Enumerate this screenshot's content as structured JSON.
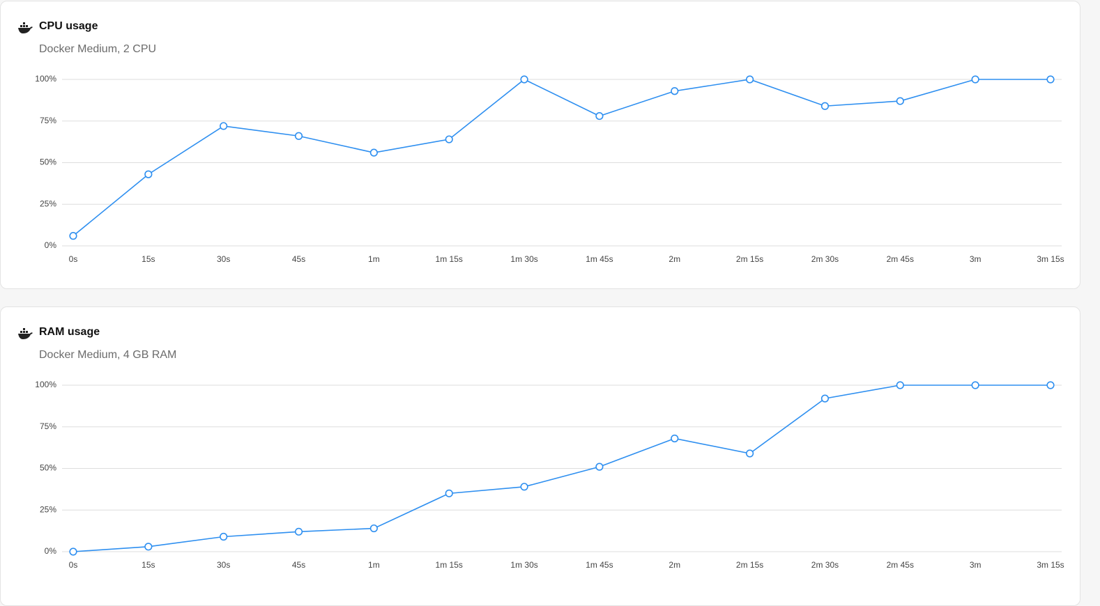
{
  "chart_data": [
    {
      "type": "line",
      "title": "CPU usage",
      "subtitle": "Docker Medium, 2 CPU",
      "color": "#2e8ff0",
      "categories": [
        "0s",
        "15s",
        "30s",
        "45s",
        "1m",
        "1m 15s",
        "1m 30s",
        "1m 45s",
        "2m",
        "2m 15s",
        "2m 30s",
        "2m 45s",
        "3m",
        "3m 15s"
      ],
      "values": [
        6,
        43,
        72,
        66,
        56,
        64,
        100,
        78,
        93,
        100,
        84,
        87,
        100,
        100
      ],
      "ylim": [
        0,
        100
      ],
      "yticks": [
        {
          "value": 0,
          "label": "0%"
        },
        {
          "value": 25,
          "label": "25%"
        },
        {
          "value": 50,
          "label": "50%"
        },
        {
          "value": 75,
          "label": "75%"
        },
        {
          "value": 100,
          "label": "100%"
        }
      ],
      "grid": true
    },
    {
      "type": "line",
      "title": "RAM usage",
      "subtitle": "Docker Medium, 4 GB RAM",
      "color": "#2e8ff0",
      "categories": [
        "0s",
        "15s",
        "30s",
        "45s",
        "1m",
        "1m 15s",
        "1m 30s",
        "1m 45s",
        "2m",
        "2m 15s",
        "2m 30s",
        "2m 45s",
        "3m",
        "3m 15s"
      ],
      "values": [
        0,
        3,
        9,
        12,
        14,
        35,
        39,
        51,
        68,
        59,
        92,
        100,
        100,
        100
      ],
      "ylim": [
        0,
        100
      ],
      "yticks": [
        {
          "value": 0,
          "label": "0%"
        },
        {
          "value": 25,
          "label": "25%"
        },
        {
          "value": 50,
          "label": "50%"
        },
        {
          "value": 75,
          "label": "75%"
        },
        {
          "value": 100,
          "label": "100%"
        }
      ],
      "grid": true
    }
  ]
}
